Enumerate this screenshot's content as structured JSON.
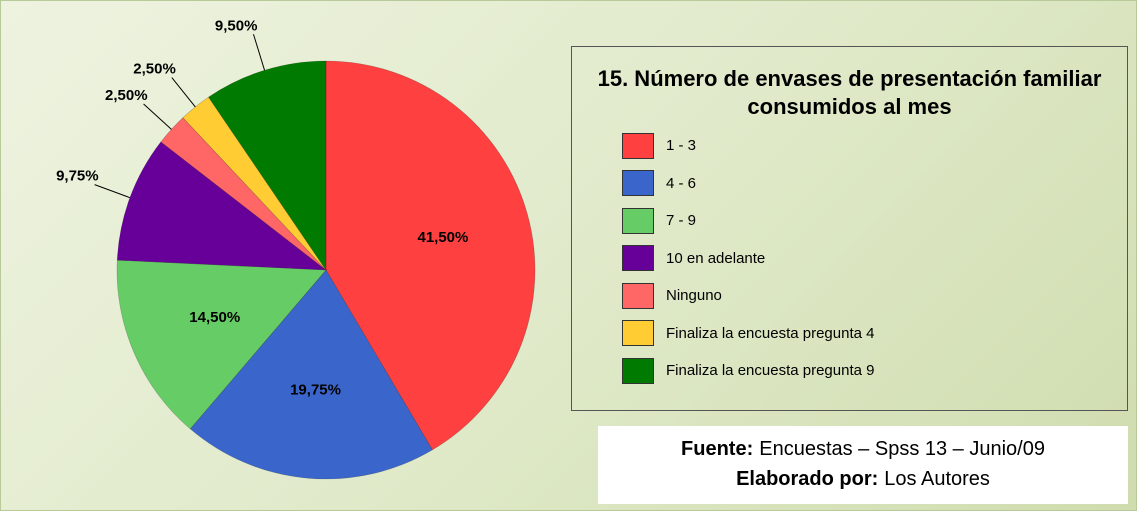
{
  "chart_data": {
    "type": "pie",
    "title": "15. Número de envases de presentación familiar consumidos al mes",
    "categories": [
      "1 - 3",
      "4 - 6",
      "7 - 9",
      "10 en adelante",
      "Ninguno",
      "Finaliza la encuesta pregunta 4",
      "Finaliza la encuesta pregunta 9"
    ],
    "values": [
      41.5,
      19.75,
      14.5,
      9.75,
      2.5,
      2.5,
      9.5
    ],
    "value_labels": [
      "41,50%",
      "19,75%",
      "14,50%",
      "9,75%",
      "2,50%",
      "2,50%",
      "9,50%"
    ],
    "colors": [
      "#ff4040",
      "#3a66cc",
      "#66cc66",
      "#660099",
      "#ff6666",
      "#ffcc33",
      "#007a00"
    ],
    "legend": "right",
    "source": {
      "label": "Fuente:",
      "text": "Encuestas – Spss 13 – Junio/09"
    },
    "author": {
      "label": "Elaborado por:",
      "text": "Los Autores"
    }
  }
}
